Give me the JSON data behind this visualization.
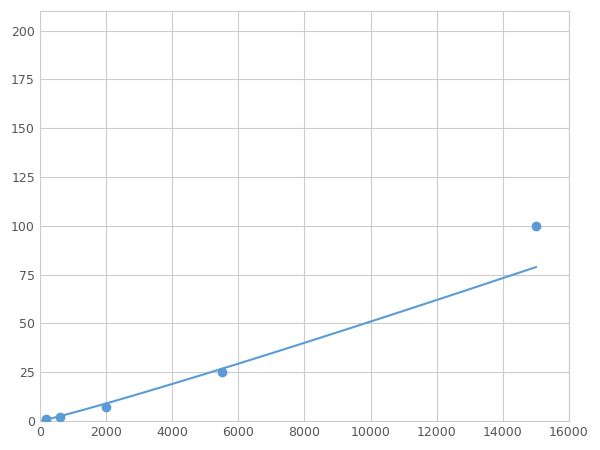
{
  "x_points": [
    200,
    600,
    2000,
    5500,
    15000
  ],
  "y_points": [
    1.0,
    2.0,
    7.0,
    25.0,
    100.0
  ],
  "line_color": "#5B9BD5",
  "marker_color": "#5B9BD5",
  "marker_size": 6,
  "linewidth": 1.5,
  "xlim": [
    0,
    16000
  ],
  "ylim": [
    0,
    210
  ],
  "xticks": [
    0,
    2000,
    4000,
    6000,
    8000,
    10000,
    12000,
    14000,
    16000
  ],
  "yticks": [
    0,
    25,
    50,
    75,
    100,
    125,
    150,
    175,
    200
  ],
  "grid_color": "#CCCCCC",
  "background_color": "#FFFFFF",
  "figure_background": "#FFFFFF",
  "tick_labelsize": 9,
  "tick_color": "#555555"
}
